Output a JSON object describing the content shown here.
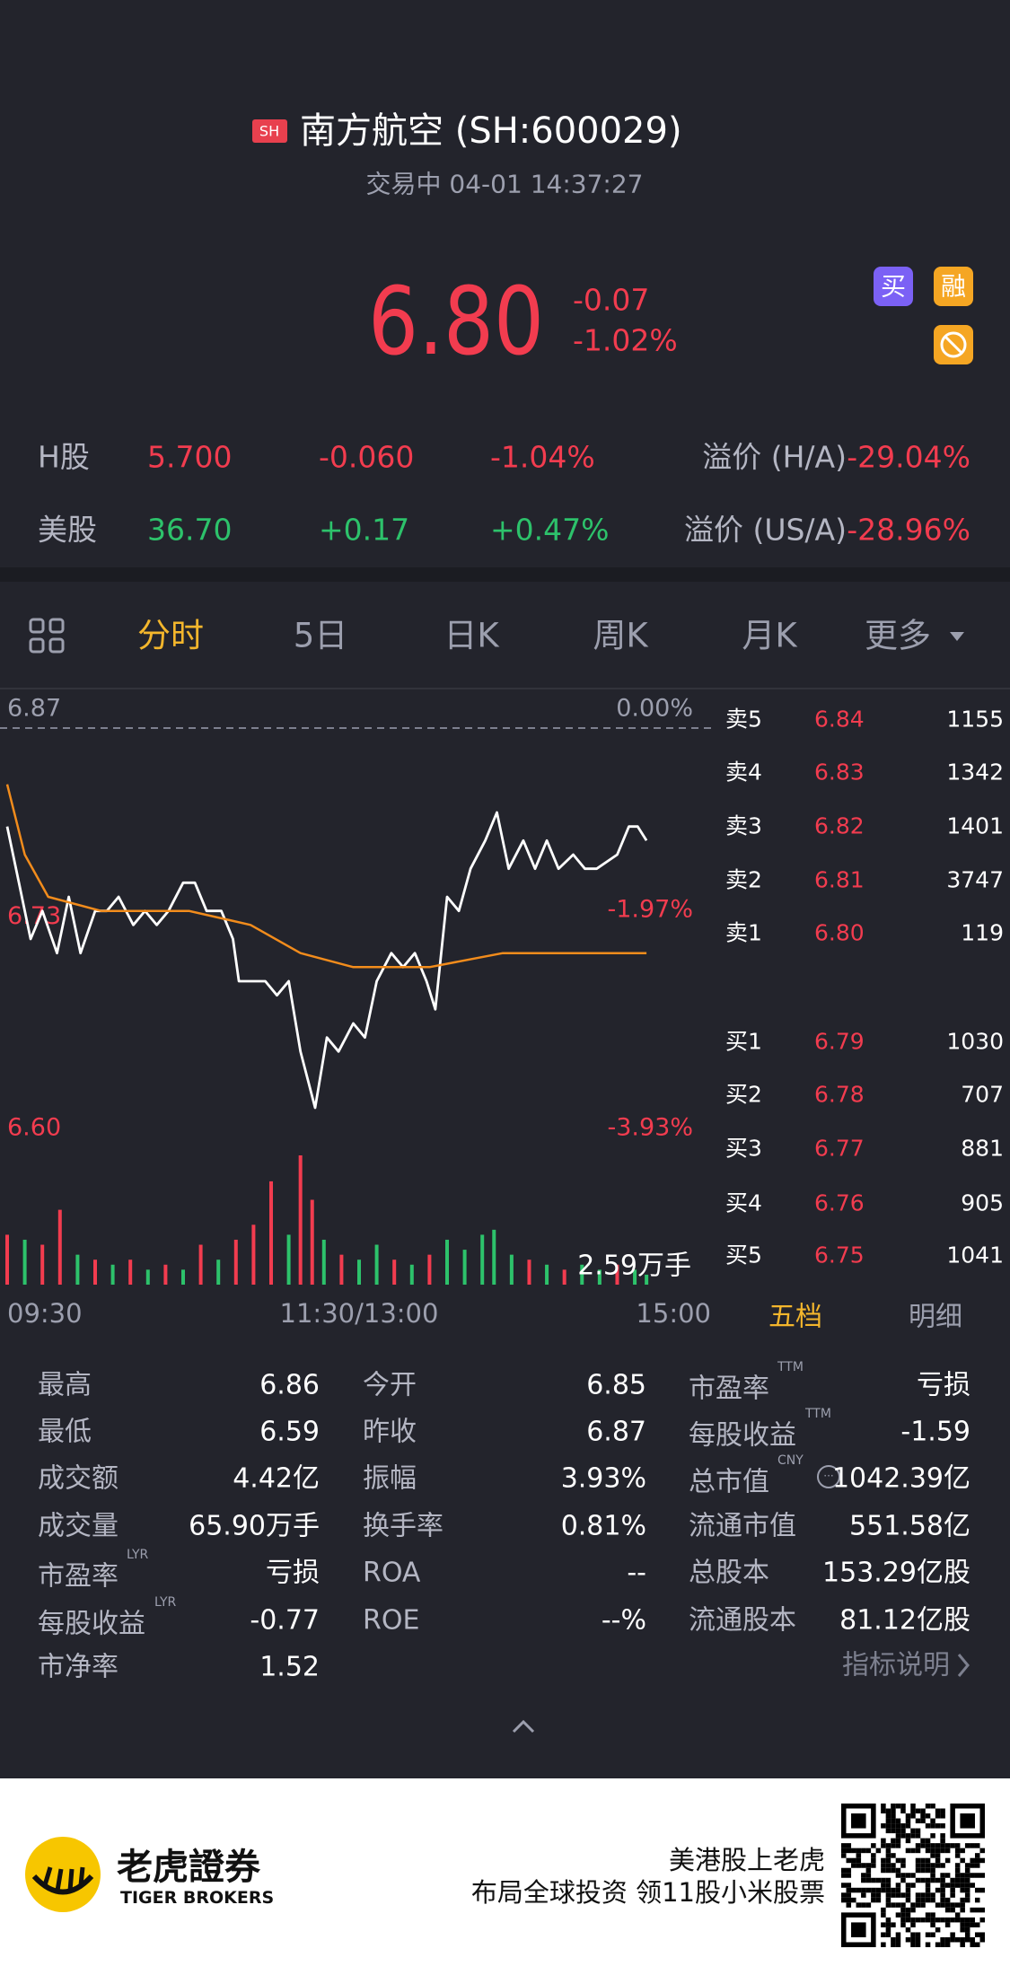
{
  "header": {
    "exchange_badge": "SH",
    "title": "南方航空 (SH:600029)",
    "status": "交易中 04-01 14:37:27"
  },
  "quote": {
    "price": "6.80",
    "change": "-0.07",
    "change_percent": "-1.02%",
    "badges": [
      "买",
      "融"
    ]
  },
  "cross_listings": [
    {
      "market": "H股",
      "price": "5.700",
      "change": "-0.060",
      "change_percent": "-1.04%",
      "premium_label": "溢价 (H/A)",
      "premium": "-29.04%"
    },
    {
      "market": "美股",
      "price": "36.70",
      "change": "+0.17",
      "change_percent": "+0.47%",
      "premium_label": "溢价 (US/A)",
      "premium": "-28.96%"
    }
  ],
  "tabs": {
    "items": [
      "分时",
      "5日",
      "日K",
      "周K",
      "月K",
      "更多"
    ],
    "active": 0
  },
  "chart_data": {
    "type": "line",
    "xlim": [
      0,
      240
    ],
    "xticks": [
      {
        "value": 0,
        "label": "09:30"
      },
      {
        "value": 120,
        "label": "11:30/13:00"
      },
      {
        "value": 240,
        "label": "15:00"
      }
    ],
    "ylim": [
      6.6,
      6.87
    ],
    "yticks": [
      6.87,
      6.73,
      {
        "value": 6.6,
        "label": "6.60"
      }
    ],
    "y2lim": [
      -3.93,
      0
    ],
    "y2ticks": [
      {
        "value": 0,
        "label": "0.00%"
      },
      {
        "value": -1.97,
        "label": "-1.97%"
      },
      {
        "value": -3.93,
        "label": "-3.93%"
      }
    ],
    "series": [
      {
        "color": "#ffffff",
        "x": [
          0,
          4,
          8,
          12,
          17,
          21,
          25,
          30,
          34,
          38,
          43,
          47,
          51,
          55,
          60,
          64,
          68,
          73,
          77,
          79,
          83,
          88,
          92,
          96,
          100,
          105,
          109,
          113,
          118,
          122,
          126,
          131,
          135,
          139,
          143,
          146,
          150,
          154,
          158,
          163,
          167,
          171,
          176,
          180,
          184,
          188,
          193,
          197,
          201,
          208,
          212,
          215,
          218
        ],
        "values": [
          6.8,
          6.76,
          6.72,
          6.74,
          6.71,
          6.75,
          6.71,
          6.74,
          6.74,
          6.75,
          6.73,
          6.74,
          6.73,
          6.74,
          6.76,
          6.76,
          6.74,
          6.74,
          6.72,
          6.69,
          6.69,
          6.69,
          6.68,
          6.69,
          6.64,
          6.6,
          6.65,
          6.64,
          6.66,
          6.65,
          6.69,
          6.71,
          6.7,
          6.71,
          6.69,
          6.67,
          6.75,
          6.74,
          6.77,
          6.79,
          6.81,
          6.77,
          6.79,
          6.77,
          6.79,
          6.77,
          6.78,
          6.77,
          6.77,
          6.78,
          6.8,
          6.8,
          6.79
        ]
      },
      {
        "color": "#f28c1c",
        "x": [
          0,
          6,
          14,
          32,
          62,
          83,
          100,
          118,
          144,
          169,
          191,
          218
        ],
        "values": [
          6.83,
          6.78,
          6.75,
          6.74,
          6.74,
          6.73,
          6.71,
          6.7,
          6.7,
          6.71,
          6.71,
          6.71
        ]
      }
    ],
    "volume": {
      "rise_color": "#2dc26b",
      "fall_color": "#f23c4f",
      "ylim": [
        0,
        2.59
      ],
      "yticks": [
        {
          "value": 2.59,
          "label": "2.59万手"
        }
      ],
      "x": [
        0,
        6,
        12,
        18,
        24,
        30,
        36,
        42,
        48,
        54,
        60,
        66,
        72,
        78,
        84,
        90,
        96,
        100,
        104,
        108,
        114,
        120,
        126,
        132,
        138,
        144,
        150,
        156,
        162,
        166,
        172,
        178,
        184,
        190,
        196,
        202,
        208,
        214,
        218
      ],
      "values": [
        1.0,
        0.9,
        0.8,
        1.5,
        0.6,
        0.5,
        0.4,
        0.5,
        0.3,
        0.4,
        0.3,
        0.8,
        0.5,
        0.9,
        1.2,
        2.07,
        1.0,
        2.59,
        1.7,
        0.9,
        0.6,
        0.5,
        0.8,
        0.5,
        0.4,
        0.6,
        0.9,
        0.7,
        1.0,
        1.1,
        0.6,
        0.5,
        0.4,
        0.3,
        0.4,
        0.3,
        0.4,
        0.3,
        0.2
      ],
      "rising": [
        false,
        true,
        false,
        false,
        true,
        false,
        true,
        false,
        true,
        false,
        true,
        false,
        true,
        false,
        false,
        false,
        true,
        false,
        false,
        true,
        false,
        true,
        true,
        false,
        true,
        false,
        true,
        true,
        true,
        true,
        true,
        false,
        true,
        false,
        true,
        true,
        false,
        true,
        true
      ]
    }
  },
  "order_book": {
    "asks": [
      {
        "label": "卖5",
        "price": "6.84",
        "volume": "1155"
      },
      {
        "label": "卖4",
        "price": "6.83",
        "volume": "1342"
      },
      {
        "label": "卖3",
        "price": "6.82",
        "volume": "1401"
      },
      {
        "label": "卖2",
        "price": "6.81",
        "volume": "3747"
      },
      {
        "label": "卖1",
        "price": "6.80",
        "volume": "119"
      }
    ],
    "bids": [
      {
        "label": "买1",
        "price": "6.79",
        "volume": "1030"
      },
      {
        "label": "买2",
        "price": "6.78",
        "volume": "707"
      },
      {
        "label": "买3",
        "price": "6.77",
        "volume": "881"
      },
      {
        "label": "买4",
        "price": "6.76",
        "volume": "905"
      },
      {
        "label": "买5",
        "price": "6.75",
        "volume": "1041"
      }
    ],
    "tabs": [
      "五档",
      "明细"
    ]
  },
  "stats": {
    "columns": [
      [
        {
          "label": "最高",
          "value": "6.86"
        },
        {
          "label": "最低",
          "value": "6.59"
        },
        {
          "label": "成交额",
          "value": "4.42亿"
        },
        {
          "label": "成交量",
          "value": "65.90万手"
        },
        {
          "label": "市盈率",
          "sup": "LYR",
          "value": "亏损"
        },
        {
          "label": "每股收益",
          "sup": "LYR",
          "value": "-0.77"
        },
        {
          "label": "市净率",
          "value": "1.52"
        }
      ],
      [
        {
          "label": "今开",
          "value": "6.85"
        },
        {
          "label": "昨收",
          "value": "6.87"
        },
        {
          "label": "振幅",
          "value": "3.93%"
        },
        {
          "label": "换手率",
          "value": "0.81%"
        },
        {
          "label": "ROA",
          "value": "--"
        },
        {
          "label": "ROE",
          "value": "--%"
        }
      ],
      [
        {
          "label": "市盈率",
          "sup": "TTM",
          "value": "亏损"
        },
        {
          "label": "每股收益",
          "sup": "TTM",
          "value": "-1.59"
        },
        {
          "label": "总市值",
          "sup": "CNY",
          "value": "1042.39亿"
        },
        {
          "label": "流通市值",
          "value": "551.58亿"
        },
        {
          "label": "总股本",
          "value": "153.29亿股"
        },
        {
          "label": "流通股本",
          "value": "81.12亿股"
        }
      ]
    ],
    "link": "指标说明"
  },
  "footer": {
    "brand": "老虎證券",
    "brand_en": "TIGER BROKERS",
    "slogan": [
      "美港股上老虎",
      "布局全球投资 领11股小米股票"
    ]
  }
}
